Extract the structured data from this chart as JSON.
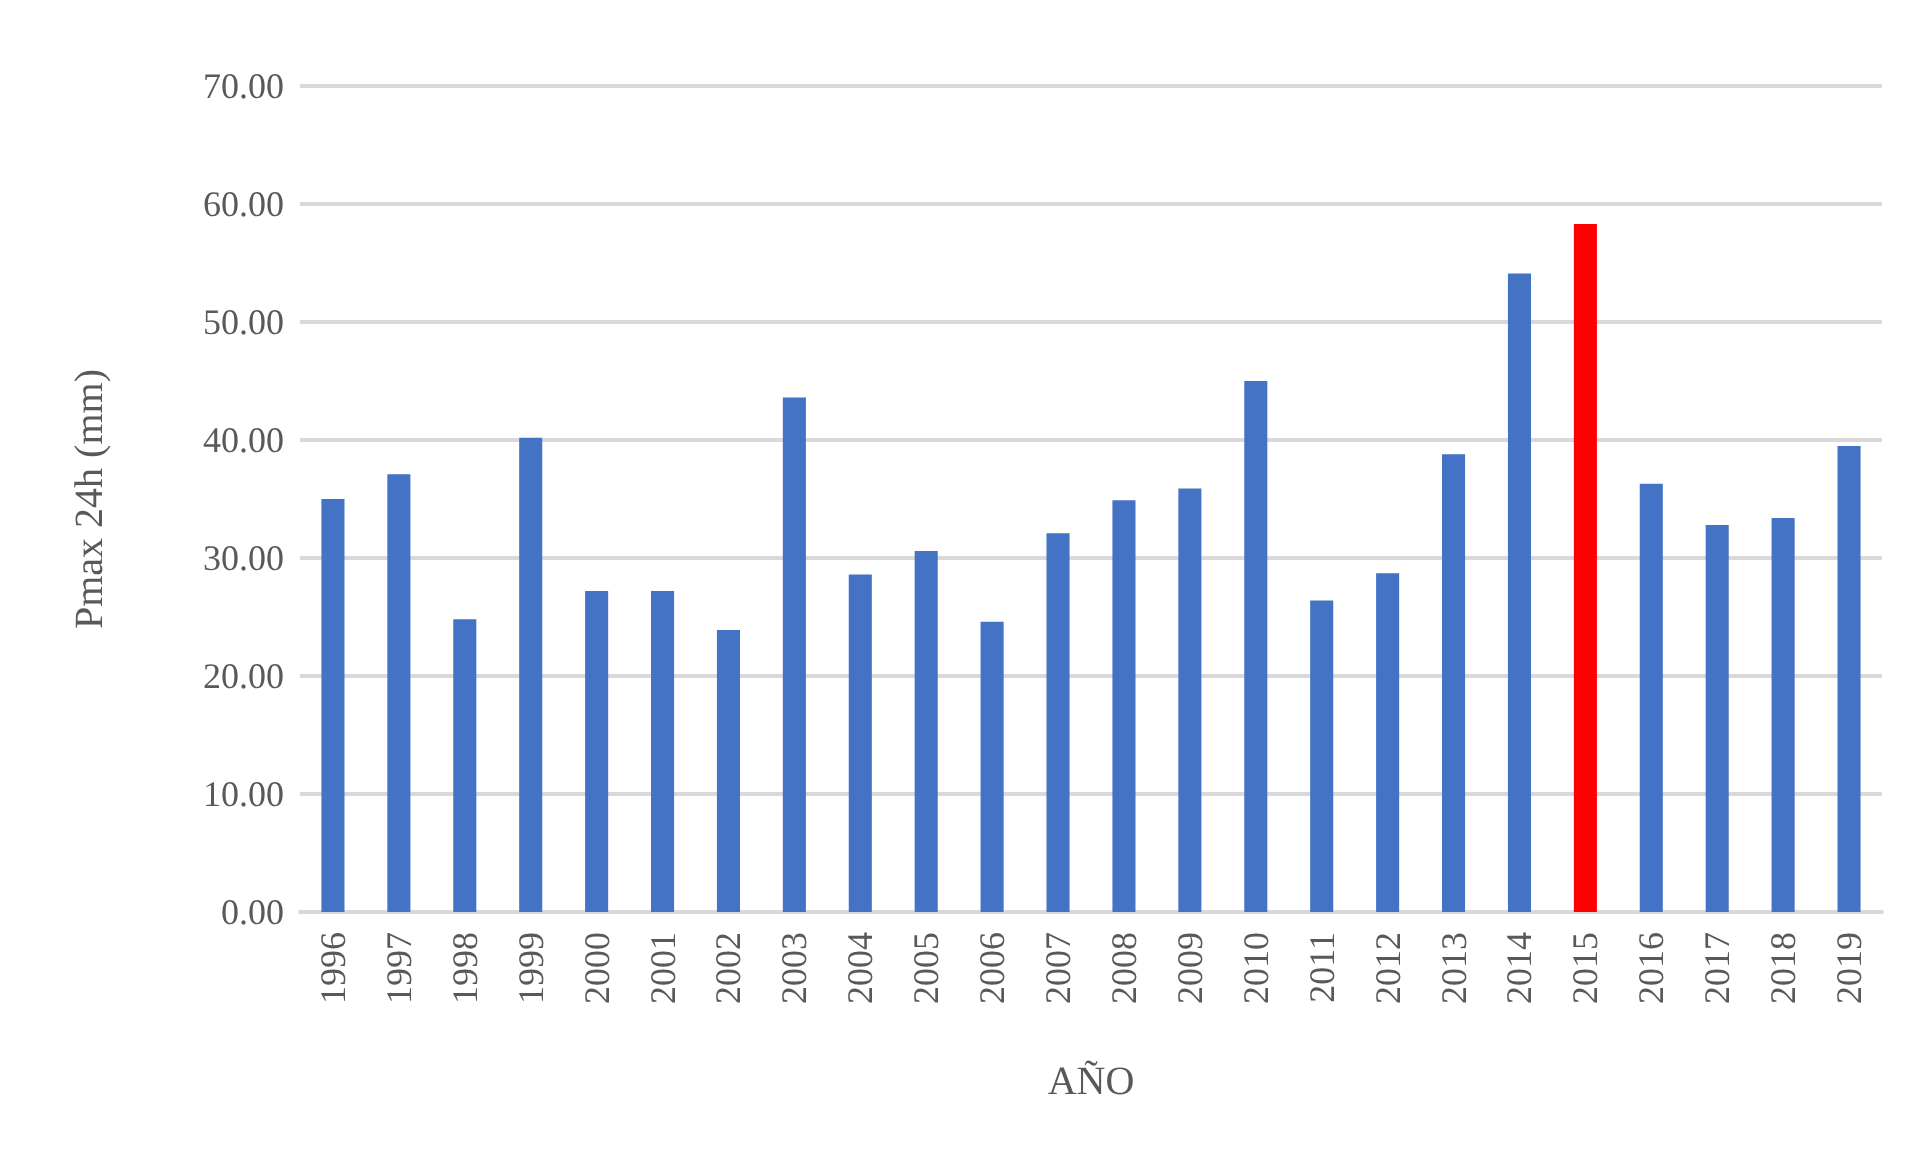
{
  "chart_data": {
    "type": "bar",
    "xlabel": "AÑO",
    "ylabel": "Pmax 24h (mm)",
    "categories": [
      "1996",
      "1997",
      "1998",
      "1999",
      "2000",
      "2001",
      "2002",
      "2003",
      "2004",
      "2005",
      "2006",
      "2007",
      "2008",
      "2009",
      "2010",
      "2011",
      "2012",
      "2013",
      "2014",
      "2015",
      "2016",
      "2017",
      "2018",
      "2019"
    ],
    "values": [
      35.0,
      37.1,
      24.8,
      40.2,
      27.2,
      27.2,
      23.9,
      43.6,
      28.6,
      30.6,
      24.6,
      32.1,
      34.9,
      35.9,
      45.0,
      26.4,
      28.7,
      38.8,
      54.1,
      58.3,
      36.3,
      32.8,
      33.4,
      39.5
    ],
    "colors": [
      "#4472c4",
      "#4472c4",
      "#4472c4",
      "#4472c4",
      "#4472c4",
      "#4472c4",
      "#4472c4",
      "#4472c4",
      "#4472c4",
      "#4472c4",
      "#4472c4",
      "#4472c4",
      "#4472c4",
      "#4472c4",
      "#4472c4",
      "#4472c4",
      "#4472c4",
      "#4472c4",
      "#4472c4",
      "#ff0000",
      "#4472c4",
      "#4472c4",
      "#4472c4",
      "#4472c4"
    ],
    "ylim": [
      0,
      70
    ],
    "yticks": [
      {
        "value": 0,
        "label": "0.00"
      },
      {
        "value": 10,
        "label": "10.00"
      },
      {
        "value": 20,
        "label": "20.00"
      },
      {
        "value": 30,
        "label": "30.00"
      },
      {
        "value": 40,
        "label": "40.00"
      },
      {
        "value": 50,
        "label": "50.00"
      },
      {
        "value": 60,
        "label": "60.00"
      },
      {
        "value": 70,
        "label": "70.00"
      }
    ],
    "grid": "y"
  }
}
